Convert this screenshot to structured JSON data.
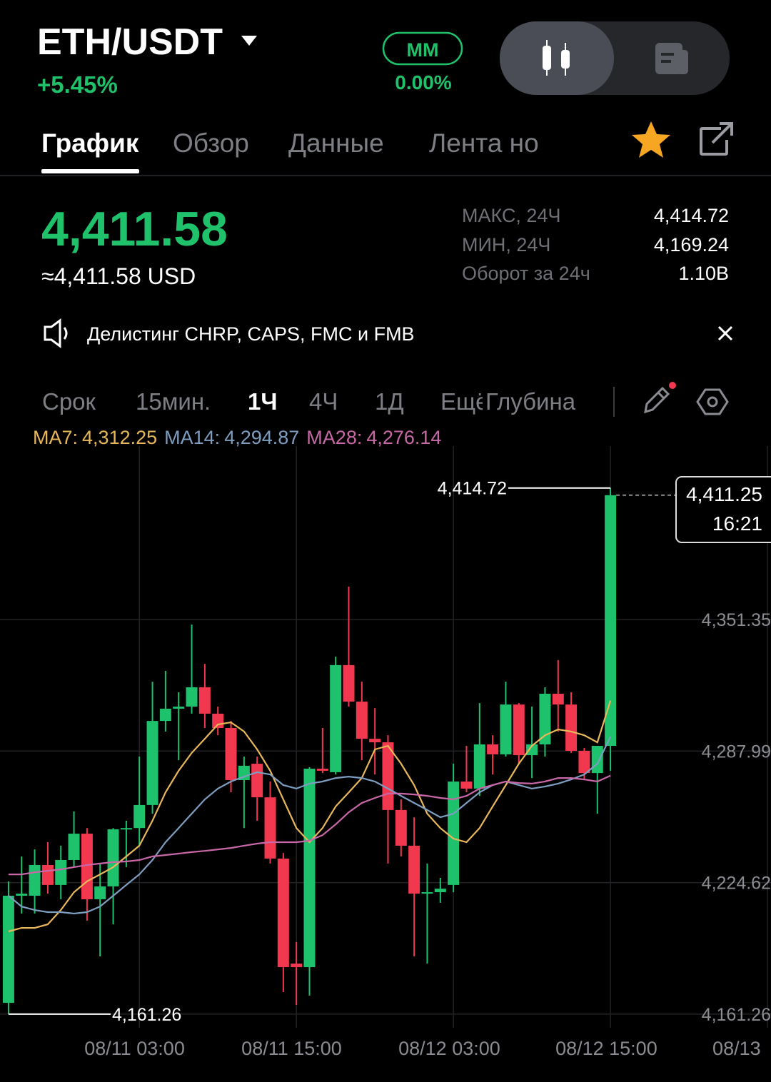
{
  "header": {
    "pair": "ETH/USDT",
    "change": "+5.45%",
    "mm_label": "MM",
    "mm_value": "0.00%"
  },
  "tabs": [
    "График",
    "Обзор",
    "Данные",
    "Лента но"
  ],
  "price": {
    "last": "4,411.58",
    "usd": "≈4,411.58 USD"
  },
  "stats": [
    {
      "label": "МАКС, 24Ч",
      "value": "4,414.72"
    },
    {
      "label": "МИН, 24Ч",
      "value": "4,169.24"
    },
    {
      "label": "Оборот за 24ч",
      "value": "1.10B"
    }
  ],
  "notice": "Делистинг CHRP, CAPS, FMC и FMB",
  "intervals": [
    "Срок",
    "15мин.",
    "1Ч",
    "4Ч",
    "1Д",
    "Ещё",
    "Глубина"
  ],
  "chart_data": {
    "type": "candlestick",
    "candles": {
      "open": [
        4166.7,
        4218.3,
        4218.3,
        4233.1,
        4223.5,
        4235.5,
        4248.2,
        4216.6,
        4222.8,
        4250.3,
        4250.9,
        4262.0,
        4302.5,
        4308.4,
        4309.4,
        4318.7,
        4306.0,
        4299.1,
        4274.0,
        4281.9,
        4265.7,
        4236.2,
        4185.6,
        4183.9,
        4279.5,
        4277.8,
        4329.4,
        4311.8,
        4293.9,
        4292.2,
        4259.6,
        4242.4,
        4219.3,
        4220.0,
        4223.5,
        4273.3,
        4269.9,
        4291.2,
        4286.4,
        4310.4,
        4286.0,
        4291.2,
        4315.6,
        4310.4,
        4288.1,
        4277.4,
        4290.5
      ],
      "high": [
        4225.2,
        4237.2,
        4240.6,
        4244.1,
        4242.4,
        4258.9,
        4250.9,
        4233.8,
        4250.9,
        4254.4,
        4285.3,
        4321.4,
        4326.6,
        4316.3,
        4348.9,
        4330.0,
        4309.4,
        4302.5,
        4285.3,
        4285.3,
        4273.3,
        4238.9,
        4196.0,
        4280.2,
        4299.1,
        4333.5,
        4367.2,
        4321.4,
        4308.7,
        4295.6,
        4264.7,
        4256.1,
        4233.8,
        4226.9,
        4281.9,
        4290.5,
        4311.1,
        4295.6,
        4321.4,
        4311.1,
        4309.4,
        4318.7,
        4331.8,
        4316.3,
        4289.5,
        4290.5,
        4414.72
      ],
      "low": [
        4161.26,
        4209.7,
        4209.7,
        4219.3,
        4216.6,
        4232.1,
        4206.3,
        4189.1,
        4204.5,
        4232.1,
        4242.4,
        4257.8,
        4297.4,
        4283.6,
        4306.0,
        4299.1,
        4295.6,
        4268.1,
        4250.9,
        4254.4,
        4233.8,
        4171.9,
        4165.7,
        4170.2,
        4277.4,
        4276.7,
        4309.4,
        4283.6,
        4276.7,
        4233.8,
        4237.2,
        4189.1,
        4185.6,
        4214.9,
        4220.0,
        4268.1,
        4266.4,
        4276.7,
        4285.3,
        4281.9,
        4275.0,
        4285.3,
        4297.4,
        4287.1,
        4274.3,
        4257.8,
        4278.5
      ],
      "close": [
        4218.3,
        4219.3,
        4233.1,
        4223.5,
        4235.5,
        4248.2,
        4216.6,
        4222.8,
        4250.3,
        4250.9,
        4262.0,
        4302.5,
        4308.4,
        4309.4,
        4318.7,
        4306.0,
        4299.1,
        4274.0,
        4280.9,
        4265.7,
        4236.2,
        4183.9,
        4183.9,
        4279.5,
        4278.5,
        4329.4,
        4311.8,
        4293.9,
        4292.2,
        4259.6,
        4242.4,
        4219.3,
        4220.0,
        4221.7,
        4273.3,
        4269.9,
        4291.2,
        4286.4,
        4310.4,
        4286.0,
        4291.2,
        4315.6,
        4310.4,
        4288.1,
        4277.4,
        4290.5,
        4411.25
      ]
    },
    "up_color": "#1ec16c",
    "down_color": "#f2384e",
    "series": [
      {
        "name": "MA7:",
        "last_value_label": "4,312.25",
        "color": "#e8b75a",
        "values": [
          4201.1,
          4202.8,
          4202.8,
          4204.5,
          4211.4,
          4220.0,
          4225.2,
          4228.6,
          4232.1,
          4237.2,
          4242.4,
          4254.4,
          4268.1,
          4278.5,
          4287.1,
          4293.9,
          4300.8,
          4301.8,
          4297.4,
          4288.8,
          4278.5,
          4264.7,
          4250.9,
          4244.1,
          4250.9,
          4261.3,
          4268.1,
          4275.0,
          4288.8,
          4290.5,
          4281.9,
          4271.6,
          4257.8,
          4250.9,
          4245.8,
          4244.1,
          4250.9,
          4261.3,
          4271.6,
          4281.9,
          4290.5,
          4295.6,
          4298.4,
          4297.4,
          4295.6,
          4292.2,
          4312.25
        ]
      },
      {
        "name": "MA14:",
        "last_value_label": "4,294.87",
        "color": "#7d9ec0",
        "values": [
          4218.3,
          4213.1,
          4211.4,
          4210.4,
          4210.4,
          4209.7,
          4210.4,
          4213.1,
          4218.3,
          4223.5,
          4228.6,
          4235.5,
          4244.1,
          4250.9,
          4257.8,
          4264.7,
          4269.9,
          4273.3,
          4275.7,
          4277.8,
          4276.7,
          4271.6,
          4269.9,
          4272.3,
          4273.3,
          4275.0,
          4275.7,
          4275.0,
          4273.3,
          4269.9,
          4266.4,
          4263.0,
          4259.6,
          4256.1,
          4257.8,
          4263.0,
          4268.1,
          4271.6,
          4273.3,
          4271.6,
          4269.9,
          4270.9,
          4272.3,
          4274.3,
          4276.7,
          4281.9,
          4294.87
        ]
      },
      {
        "name": "MA28:",
        "last_value_label": "4,276.14",
        "color": "#c868a8",
        "values": [
          4228.6,
          4228.6,
          4229.6,
          4230.3,
          4231.0,
          4232.1,
          4233.1,
          4233.8,
          4234.5,
          4234.8,
          4235.5,
          4237.2,
          4237.9,
          4238.6,
          4239.3,
          4239.9,
          4240.6,
          4241.3,
          4242.4,
          4243.4,
          4244.1,
          4244.1,
          4244.1,
          4244.8,
          4247.5,
          4252.7,
          4258.5,
          4263.0,
          4265.4,
          4267.5,
          4267.5,
          4267.1,
          4266.4,
          4265.4,
          4264.7,
          4266.4,
          4269.9,
          4271.6,
          4273.3,
          4272.6,
          4272.3,
          4273.3,
          4275.0,
          4275.0,
          4274.3,
          4273.3,
          4276.14
        ]
      }
    ],
    "high_marker": {
      "value": 4414.72,
      "label": "4,414.72"
    },
    "low_marker": {
      "value": 4161.26,
      "label": "4,161.26"
    },
    "last_price": {
      "value": 4411.25,
      "label": "4,411.25"
    },
    "last_time": "16:21",
    "ylim": [
      4154.7,
      4434.9
    ],
    "yticks": [
      {
        "value": 4161.26,
        "label": "4,161.26"
      },
      {
        "value": 4224.62,
        "label": "4,224.62"
      },
      {
        "value": 4287.99,
        "label": "4,287.99"
      },
      {
        "value": 4351.35,
        "label": "4,351.35"
      }
    ],
    "xlim": [
      -0.65,
      58.27
    ],
    "xticks": [
      {
        "value": 10,
        "label": "08/11 03:00"
      },
      {
        "value": 22,
        "label": "08/11 15:00"
      },
      {
        "value": 34,
        "label": "08/12 03:00"
      },
      {
        "value": 46,
        "label": "08/12 15:00"
      },
      {
        "value": 58,
        "label": "08/13"
      }
    ],
    "grid": true
  }
}
